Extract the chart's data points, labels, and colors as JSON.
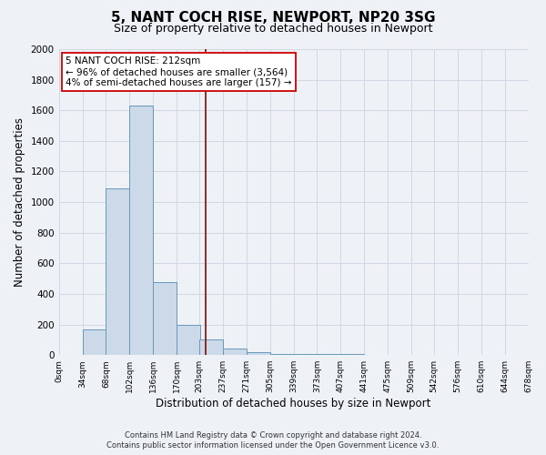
{
  "title": "5, NANT COCH RISE, NEWPORT, NP20 3SG",
  "subtitle": "Size of property relative to detached houses in Newport",
  "xlabel": "Distribution of detached houses by size in Newport",
  "ylabel": "Number of detached properties",
  "bin_labels": [
    "0sqm",
    "34sqm",
    "68sqm",
    "102sqm",
    "136sqm",
    "170sqm",
    "203sqm",
    "237sqm",
    "271sqm",
    "305sqm",
    "339sqm",
    "373sqm",
    "407sqm",
    "441sqm",
    "475sqm",
    "509sqm",
    "542sqm",
    "576sqm",
    "610sqm",
    "644sqm",
    "678sqm"
  ],
  "bin_edges": [
    0,
    34,
    68,
    102,
    136,
    170,
    203,
    237,
    271,
    305,
    339,
    373,
    407,
    441,
    475,
    509,
    542,
    576,
    610,
    644,
    678
  ],
  "bar_heights": [
    0,
    170,
    1090,
    1630,
    480,
    200,
    100,
    40,
    20,
    5,
    5,
    5,
    5,
    0,
    0,
    0,
    0,
    0,
    0,
    0
  ],
  "bar_color": "#ccd9e8",
  "bar_edge_color": "#6699bb",
  "vline_x": 212,
  "vline_color": "#8b1a1a",
  "annotation_title": "5 NANT COCH RISE: 212sqm",
  "annotation_line1": "← 96% of detached houses are smaller (3,564)",
  "annotation_line2": "4% of semi-detached houses are larger (157) →",
  "annotation_box_color": "#ffffff",
  "annotation_box_edge": "#cc0000",
  "footer1": "Contains HM Land Registry data © Crown copyright and database right 2024.",
  "footer2": "Contains public sector information licensed under the Open Government Licence v3.0.",
  "bg_color": "#eef2f7",
  "plot_bg_color": "#eef2f7",
  "grid_color": "#d0d8e4",
  "ylim": [
    0,
    2000
  ],
  "yticks": [
    0,
    200,
    400,
    600,
    800,
    1000,
    1200,
    1400,
    1600,
    1800,
    2000
  ]
}
